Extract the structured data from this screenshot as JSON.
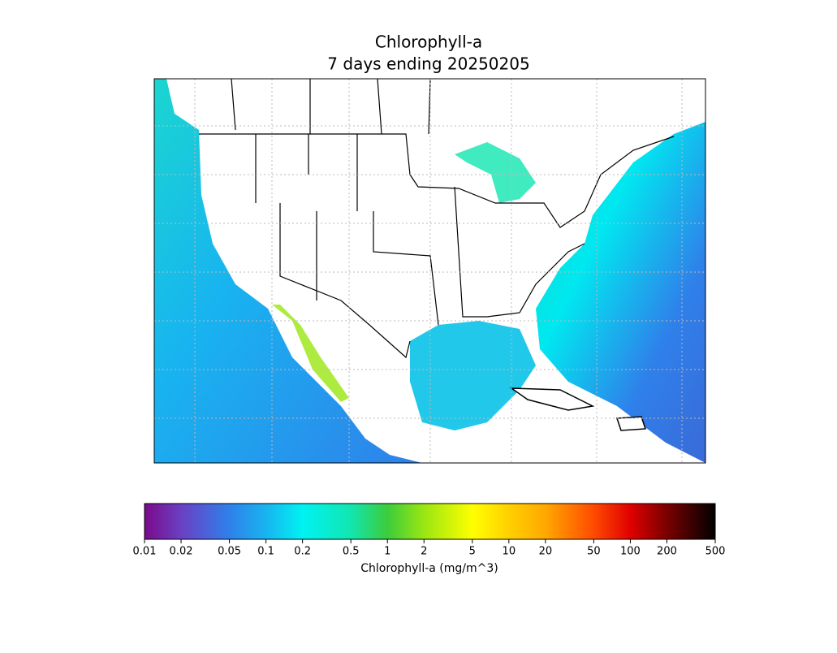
{
  "chart_data": {
    "type": "colorbar",
    "title": "Chlorophyll-a",
    "subtitle": "7 days ending 20250205",
    "xlabel": "Chlorophyll-a (mg/m^3)",
    "log_scale": true,
    "xlim": [
      0.01,
      500
    ],
    "xticks": [
      0.01,
      0.02,
      0.05,
      0.1,
      0.2,
      0.5,
      1,
      2,
      5,
      10,
      20,
      50,
      100,
      200,
      500
    ],
    "colors": [
      "#7a0a8a",
      "#6a40c4",
      "#2f80ea",
      "#18b4f0",
      "#00f2f2",
      "#12e6b0",
      "#3ccc3c",
      "#9ae612",
      "#ffff00",
      "#ffd000",
      "#ffa800",
      "#ff4a00",
      "#e00000",
      "#7a0000",
      "#000000"
    ]
  }
}
